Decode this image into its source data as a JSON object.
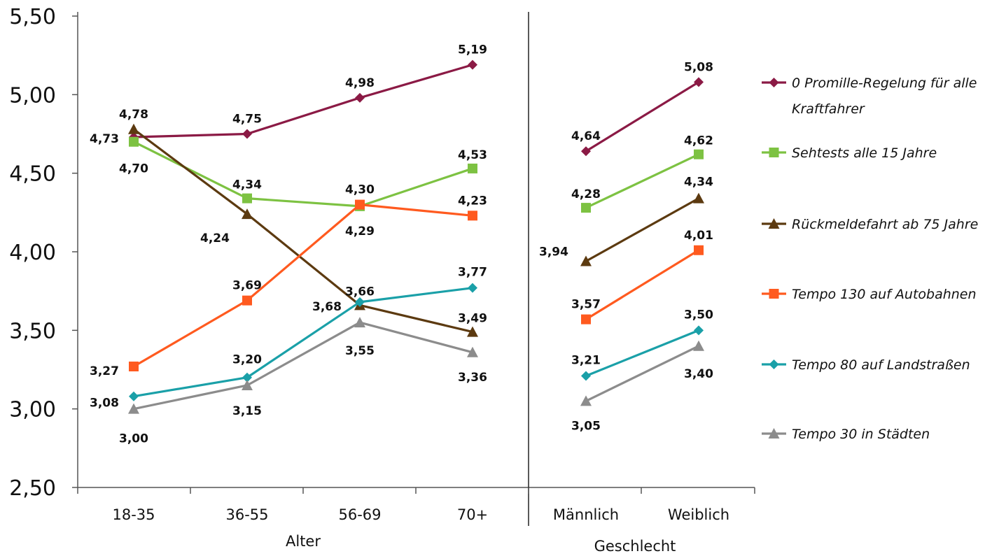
{
  "chart_data": {
    "type": "line",
    "ylim": [
      2.5,
      5.5
    ],
    "yticks": [
      "5,50",
      "5,00",
      "4,50",
      "4,00",
      "3,50",
      "3,00",
      "2,50"
    ],
    "ytick_values": [
      5.5,
      5.0,
      4.5,
      4.0,
      3.5,
      3.0,
      2.5
    ],
    "categories": [
      "18-35",
      "36-55",
      "56-69",
      "70+",
      "Männlich",
      "Weiblich"
    ],
    "groups": [
      {
        "label": "Alter",
        "categories": [
          "18-35",
          "36-55",
          "56-69",
          "70+"
        ]
      },
      {
        "label": "Geschlecht",
        "categories": [
          "Männlich",
          "Weiblich"
        ]
      }
    ],
    "legend_position": "right",
    "series": [
      {
        "name": "0 Promille-Regelung für alle Kraftfahrer",
        "legend_lines": [
          "0 Promille-Regelung für alle",
          "Kraftfahrer"
        ],
        "color": "#8B1A45",
        "marker": "diamond",
        "values": [
          4.73,
          4.75,
          4.98,
          5.19,
          4.64,
          5.08
        ],
        "labels": [
          "4,73",
          "4,75",
          "4,98",
          "5,19",
          "4,64",
          "5,08"
        ]
      },
      {
        "name": "Sehtests alle 15 Jahre",
        "legend_lines": [
          "Sehtests alle 15 Jahre"
        ],
        "color": "#7DC242",
        "marker": "square",
        "values": [
          4.7,
          4.34,
          4.29,
          4.53,
          4.28,
          4.62
        ],
        "labels": [
          "4,70",
          "4,34",
          "4,29",
          "4,53",
          "4,28",
          "4,62"
        ]
      },
      {
        "name": "Rückmeldefahrt ab 75 Jahre",
        "legend_lines": [
          "Rückmeldefahrt ab 75 Jahre"
        ],
        "color": "#5C3A10",
        "marker": "triangle",
        "values": [
          4.78,
          4.24,
          3.66,
          3.49,
          3.94,
          4.34
        ],
        "labels": [
          "4,78",
          "4,24",
          "3,66",
          "3,49",
          "3,94",
          "4,34"
        ]
      },
      {
        "name": "Tempo 130 auf Autobahnen",
        "legend_lines": [
          "Tempo 130 auf Autobahnen"
        ],
        "color": "#FF5A1F",
        "marker": "square",
        "values": [
          3.27,
          3.69,
          4.3,
          4.23,
          3.57,
          4.01
        ],
        "labels": [
          "3,27",
          "3,69",
          "4,30",
          "4,23",
          "3,57",
          "4,01"
        ]
      },
      {
        "name": "Tempo 80 auf Landstraßen",
        "legend_lines": [
          "Tempo 80 auf Landstraßen"
        ],
        "color": "#1AA0A8",
        "marker": "diamond",
        "values": [
          3.08,
          3.2,
          3.68,
          3.77,
          3.21,
          3.5
        ],
        "labels": [
          "3,08",
          "3,20",
          "3,68",
          "3,77",
          "3,21",
          "3,50"
        ]
      },
      {
        "name": "Tempo 30 in Städten",
        "legend_lines": [
          "Tempo 30 in Städten"
        ],
        "color": "#8C8C8C",
        "marker": "triangle",
        "values": [
          3.0,
          3.15,
          3.55,
          3.36,
          3.05,
          3.4
        ],
        "labels": [
          "3,00",
          "3,15",
          "3,55",
          "3,36",
          "3,05",
          "3,40"
        ]
      }
    ]
  }
}
